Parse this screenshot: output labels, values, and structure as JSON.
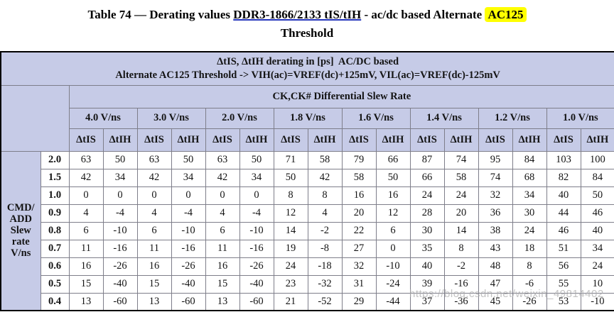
{
  "title": {
    "part1": "Table 74 — Derating values ",
    "link_text": "DDR3-1866/2133 tIS/tIH",
    "part2": " - ac/dc based Alternate ",
    "highlight_text": "AC125",
    "line2": "Threshold"
  },
  "table": {
    "header_line1": "ΔtIS, ΔtIH derating in [ps]  AC/DC based",
    "header_line2": "Alternate AC125 Threshold -> VIH(ac)=VREF(dc)+125mV, VIL(ac)=VREF(dc)-125mV",
    "ck_header": "CK,CK# Differential Slew Rate",
    "slew_rates": [
      "4.0 V/ns",
      "3.0 V/ns",
      "2.0 V/ns",
      "1.8 V/ns",
      "1.6 V/ns",
      "1.4 V/ns",
      "1.2 V/ns",
      "1.0 V/ns"
    ],
    "sub_headers": [
      "ΔtIS",
      "ΔtIH"
    ],
    "row_group_label": [
      "CMD/",
      "ADD",
      "Slew",
      "rate",
      "V/ns"
    ],
    "rows": [
      {
        "label": "2.0",
        "values": [
          63,
          50,
          63,
          50,
          63,
          50,
          71,
          58,
          79,
          66,
          87,
          74,
          95,
          84,
          103,
          100
        ]
      },
      {
        "label": "1.5",
        "values": [
          42,
          34,
          42,
          34,
          42,
          34,
          50,
          42,
          58,
          50,
          66,
          58,
          74,
          68,
          82,
          84
        ]
      },
      {
        "label": "1.0",
        "values": [
          0,
          0,
          0,
          0,
          0,
          0,
          8,
          8,
          16,
          16,
          24,
          24,
          32,
          34,
          40,
          50
        ]
      },
      {
        "label": "0.9",
        "values": [
          4,
          -4,
          4,
          -4,
          4,
          -4,
          12,
          4,
          20,
          12,
          28,
          20,
          36,
          30,
          44,
          46
        ]
      },
      {
        "label": "0.8",
        "values": [
          6,
          -10,
          6,
          -10,
          6,
          -10,
          14,
          -2,
          22,
          6,
          30,
          14,
          38,
          24,
          46,
          40
        ]
      },
      {
        "label": "0.7",
        "values": [
          11,
          -16,
          11,
          -16,
          11,
          -16,
          19,
          -8,
          27,
          0,
          35,
          8,
          43,
          18,
          51,
          34
        ]
      },
      {
        "label": "0.6",
        "values": [
          16,
          -26,
          16,
          -26,
          16,
          -26,
          24,
          -18,
          32,
          -10,
          40,
          -2,
          48,
          8,
          56,
          24
        ]
      },
      {
        "label": "0.5",
        "values": [
          15,
          -40,
          15,
          -40,
          15,
          -40,
          23,
          -32,
          31,
          -24,
          39,
          -16,
          47,
          -6,
          55,
          10
        ]
      },
      {
        "label": "0.4",
        "values": [
          13,
          -60,
          13,
          -60,
          13,
          -60,
          21,
          -52,
          29,
          -44,
          37,
          -36,
          45,
          -26,
          53,
          -10
        ]
      }
    ],
    "highlight": {
      "row_label": "1.0",
      "col_indices": [
        4,
        5
      ]
    }
  },
  "watermark": "https://blog.csdn.net/weixin_49814402",
  "colors": {
    "header_bg": "#c6cbe7",
    "highlight_marker": "#ffff00",
    "link_underline": "#2233bb",
    "outer_border": "#000000",
    "inner_border": "#7e7e8a"
  }
}
